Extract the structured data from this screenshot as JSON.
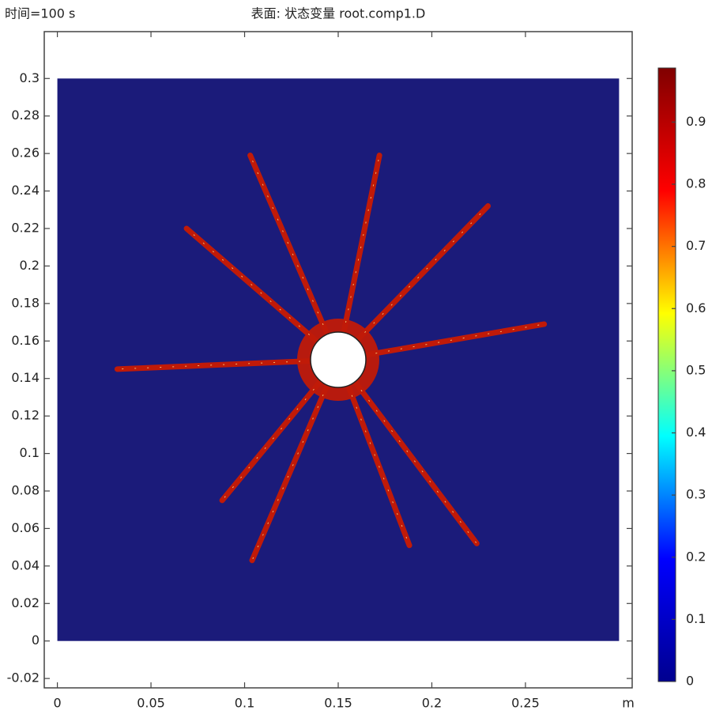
{
  "chart_data": {
    "type": "surface",
    "time_label": "时间=100 s",
    "title": "表面: 状态变量 root.comp1.D",
    "x_unit": "m",
    "xlim": [
      -0.007,
      0.307
    ],
    "ylim": [
      -0.025,
      0.325
    ],
    "xticks": [
      0,
      0.05,
      0.1,
      0.15,
      0.2,
      0.25
    ],
    "yticks": [
      -0.02,
      0,
      0.02,
      0.04,
      0.06,
      0.08,
      0.1,
      0.12,
      0.14,
      0.16,
      0.18,
      0.2,
      0.22,
      0.24,
      0.26,
      0.28,
      0.3
    ],
    "domain_x": [
      0,
      0.3
    ],
    "domain_y": [
      0,
      0.3
    ],
    "background_color": "#1b1b7a",
    "crack_color": "#c01a08",
    "colormap": [
      "#00008f",
      "#0000ff",
      "#00ffff",
      "#ffff00",
      "#ff0000",
      "#800000"
    ],
    "clim": [
      0,
      0.987
    ],
    "cticks": [
      0,
      0.1,
      0.2,
      0.3,
      0.4,
      0.5,
      0.6,
      0.7,
      0.8,
      0.9
    ],
    "series": [
      {
        "x": [
          0.15,
          0.103
        ],
        "y": [
          0.15,
          0.259
        ]
      },
      {
        "x": [
          0.15,
          0.172
        ],
        "y": [
          0.15,
          0.259
        ]
      },
      {
        "x": [
          0.15,
          0.23
        ],
        "y": [
          0.15,
          0.232
        ]
      },
      {
        "x": [
          0.15,
          0.26
        ],
        "y": [
          0.15,
          0.169
        ]
      },
      {
        "x": [
          0.15,
          0.032
        ],
        "y": [
          0.15,
          0.145
        ]
      },
      {
        "x": [
          0.15,
          0.069
        ],
        "y": [
          0.15,
          0.22
        ]
      },
      {
        "x": [
          0.15,
          0.088
        ],
        "y": [
          0.15,
          0.075
        ]
      },
      {
        "x": [
          0.15,
          0.104
        ],
        "y": [
          0.15,
          0.043
        ]
      },
      {
        "x": [
          0.15,
          0.188
        ],
        "y": [
          0.15,
          0.051
        ]
      },
      {
        "x": [
          0.15,
          0.224
        ],
        "y": [
          0.15,
          0.052
        ]
      }
    ]
  }
}
